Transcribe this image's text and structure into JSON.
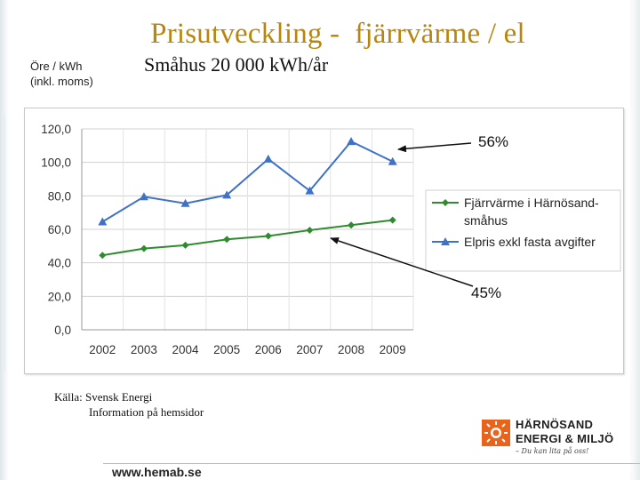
{
  "slide": {
    "title": "Prisutveckling -  fjärrvärme / el",
    "unit_line1": "Öre / kWh",
    "unit_line2": "(inkl. moms)",
    "subtitle": "Småhus 20 000 kWh/år",
    "callout_top": "56%",
    "callout_bottom": "45%",
    "source_line1": "Källa: Svensk Energi",
    "source_line2": "Information på hemsidor",
    "footer_url": "www.hemab.se"
  },
  "logo": {
    "line1": "HÄRNÖSAND",
    "line2": "ENERGI & MILJÖ",
    "tagline": "– Du kan lita på oss!",
    "colors": {
      "sun": "#e8641c",
      "text": "#1e1e1e"
    }
  },
  "chart_data": {
    "type": "line",
    "categories": [
      "2002",
      "2003",
      "2004",
      "2005",
      "2006",
      "2007",
      "2008",
      "2009"
    ],
    "y_ticks": [
      "120,0",
      "100,0",
      "80,0",
      "60,0",
      "40,0",
      "20,0",
      "0,0"
    ],
    "ylim": [
      0,
      120
    ],
    "grid": true,
    "legend_position": "right",
    "series": [
      {
        "name": "Fjärrvärme i Härnösand-\nsmåhus",
        "color": "#2e8b2e",
        "marker": "diamond",
        "values": [
          44.5,
          48.5,
          50.5,
          54,
          56,
          59.5,
          62.5,
          65.5
        ]
      },
      {
        "name": "Elpris exkl fasta avgifter",
        "color": "#3f72c6",
        "marker": "triangle",
        "values": [
          64.5,
          79.5,
          75.5,
          80.5,
          102,
          83,
          112.5,
          100.5
        ]
      }
    ]
  }
}
